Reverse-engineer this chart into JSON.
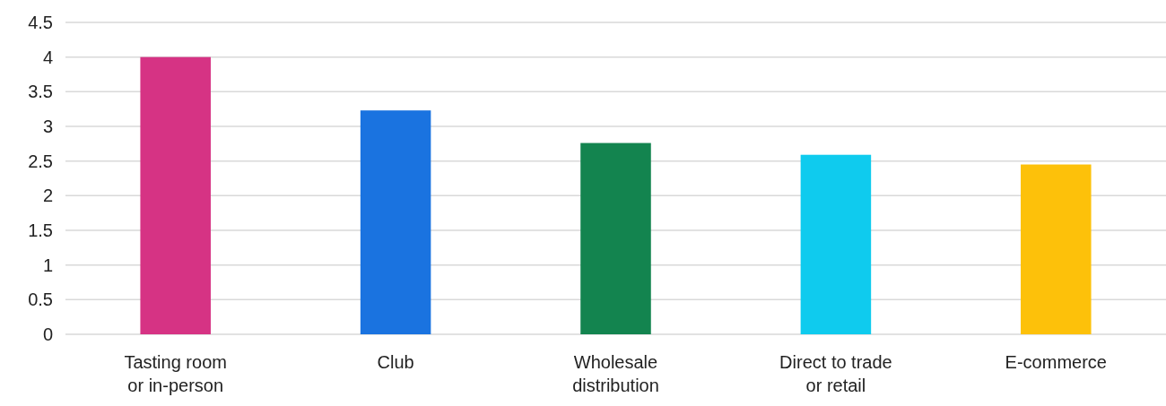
{
  "chart_data": {
    "type": "bar",
    "categories": [
      "Tasting room or in-person",
      "Club",
      "Wholesale distribution",
      "Direct to trade or retail",
      "E-commerce"
    ],
    "values": [
      4.0,
      3.23,
      2.76,
      2.59,
      2.45
    ],
    "colors": [
      "#d63384",
      "#1a73e0",
      "#13844f",
      "#0fcbee",
      "#fdc10a"
    ],
    "ylim": [
      0,
      4.5
    ],
    "yticks": [
      0,
      0.5,
      1,
      1.5,
      2,
      2.5,
      3,
      3.5,
      4,
      4.5
    ],
    "grid": "y"
  }
}
